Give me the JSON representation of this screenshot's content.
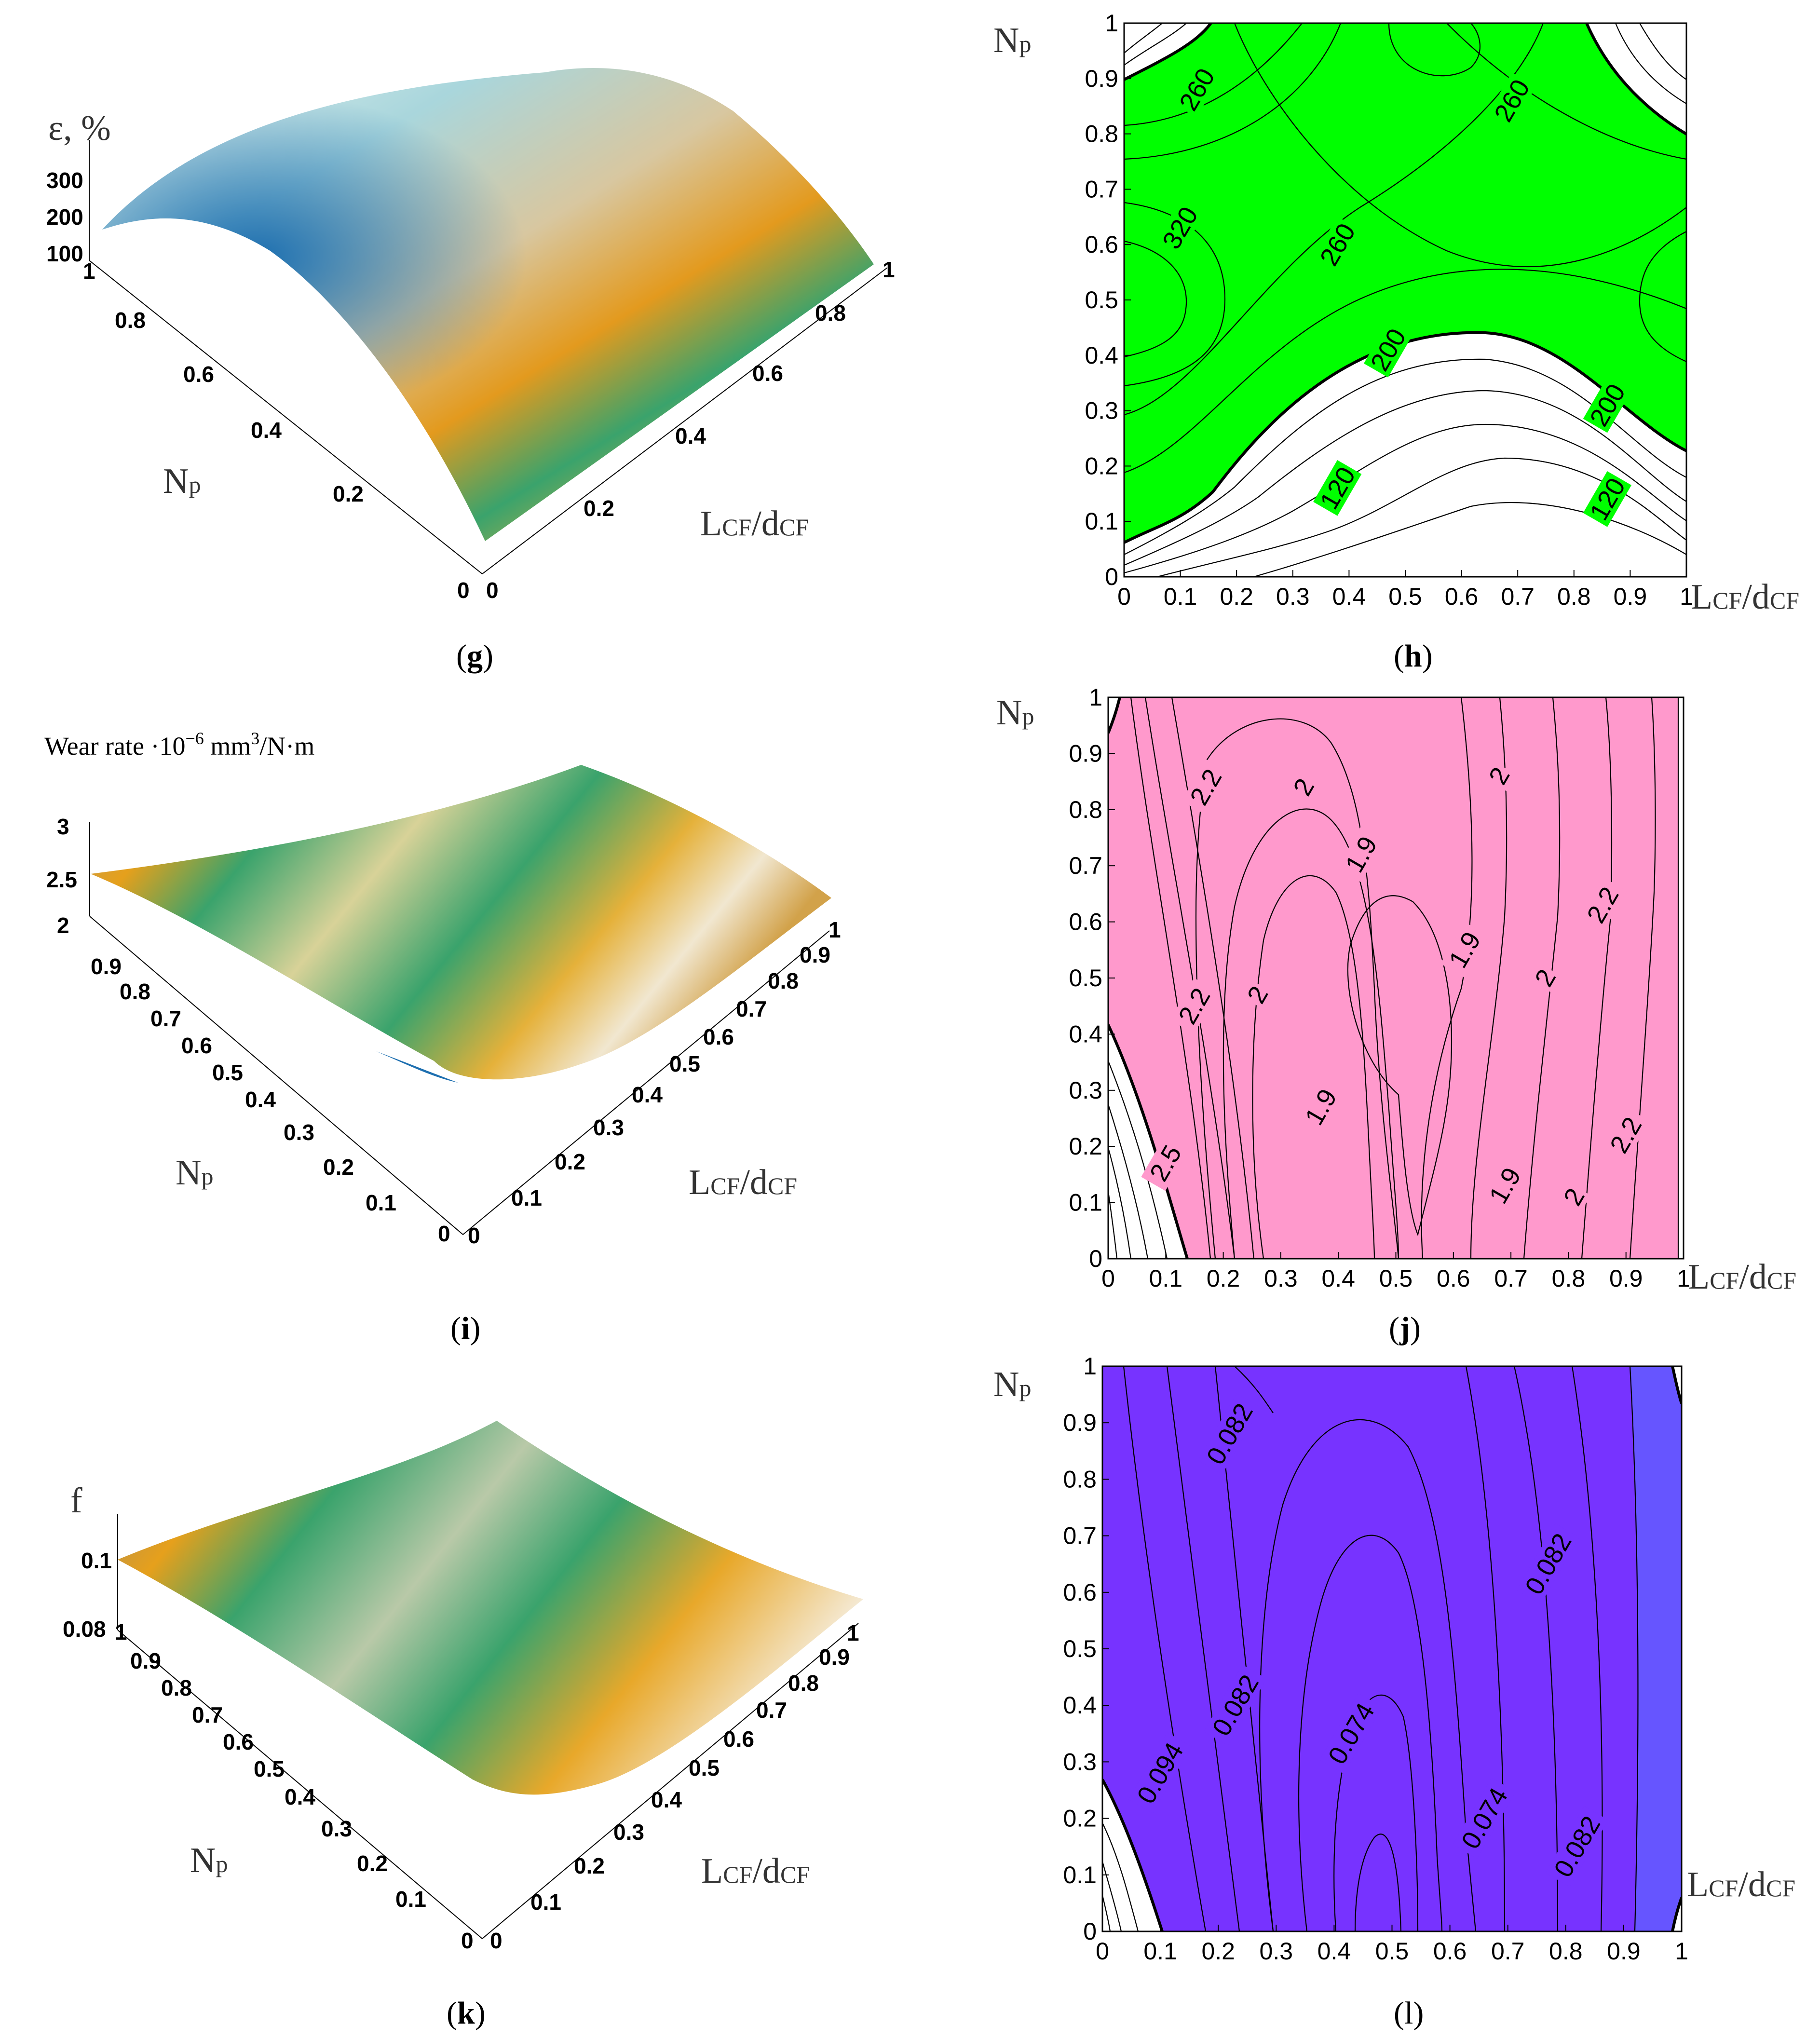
{
  "colors": {
    "green_fill": "#00ff00",
    "pink_fill": "#ff99cc",
    "violet_fill": "#7733ff",
    "violet_edge": "#6655ff",
    "surface_cream": "#f1e7d0",
    "surface_teal": "#9ed6df",
    "surface_orange": "#e39a1e",
    "surface_green": "#3aa36c",
    "surface_brown": "#5a4a2a",
    "surface_blue": "#1d6fb0"
  },
  "x_axis_label": {
    "main": "L",
    "sub1": "CF",
    "mid": "/d",
    "sub2": "CF"
  },
  "y_axis_label": {
    "main": "N",
    "sub": "p"
  },
  "panels": {
    "g": {
      "caption": "g",
      "zlabel": "ε, %",
      "z_ticks": [
        "300",
        "200",
        "100"
      ],
      "np_ticks": [
        "1",
        "0.8",
        "0.6",
        "0.4",
        "0.2",
        "0"
      ],
      "l_ticks": [
        "0",
        "0.2",
        "0.4",
        "0.6",
        "0.8",
        "1"
      ]
    },
    "i": {
      "caption": "i",
      "zlabel": {
        "prefix": "Wear rate ·10",
        "exp": "−6",
        "mid": " mm",
        "exp2": "3",
        "suffix": "/N·m"
      },
      "z_ticks": [
        "3",
        "2.5",
        "2"
      ],
      "np_ticks": [
        "0.9",
        "0.8",
        "0.7",
        "0.6",
        "0.5",
        "0.4",
        "0.3",
        "0.2",
        "0.1",
        "0"
      ],
      "l_ticks": [
        "0",
        "0.1",
        "0.2",
        "0.3",
        "0.4",
        "0.5",
        "0.6",
        "0.7",
        "0.8",
        "0.9",
        "1"
      ]
    },
    "k": {
      "caption": "k",
      "zlabel": "f",
      "z_ticks": [
        "0.1",
        "0.08"
      ],
      "np_ticks": [
        "1",
        "0.9",
        "0.8",
        "0.7",
        "0.6",
        "0.5",
        "0.4",
        "0.3",
        "0.2",
        "0.1",
        "0"
      ],
      "l_ticks": [
        "0",
        "0.1",
        "0.2",
        "0.3",
        "0.4",
        "0.5",
        "0.6",
        "0.7",
        "0.8",
        "0.9",
        "1"
      ]
    },
    "h": {
      "caption": "h"
    },
    "j": {
      "caption": "j"
    },
    "l": {
      "caption": "l"
    }
  },
  "chart_data": [
    {
      "id": "h",
      "type": "contour",
      "title": "",
      "xlabel": "LCF/dCF",
      "ylabel": "Np",
      "xlim": [
        0,
        1
      ],
      "ylim": [
        0,
        1
      ],
      "x_ticks": [
        "0",
        "0.1",
        "0.2",
        "0.3",
        "0.4",
        "0.5",
        "0.6",
        "0.7",
        "0.8",
        "0.9",
        "1"
      ],
      "y_ticks": [
        "0",
        "0.1",
        "0.2",
        "0.3",
        "0.4",
        "0.5",
        "0.6",
        "0.7",
        "0.8",
        "0.9",
        "1"
      ],
      "fill_region": "values >= 200",
      "contour_labels": [
        {
          "text": "260",
          "x": 0.13,
          "y": 0.88
        },
        {
          "text": "260",
          "x": 0.69,
          "y": 0.86
        },
        {
          "text": "320",
          "x": 0.1,
          "y": 0.63
        },
        {
          "text": "260",
          "x": 0.38,
          "y": 0.6
        },
        {
          "text": "200",
          "x": 0.47,
          "y": 0.41
        },
        {
          "text": "200",
          "x": 0.86,
          "y": 0.31
        },
        {
          "text": "120",
          "x": 0.38,
          "y": 0.16
        },
        {
          "text": "120",
          "x": 0.86,
          "y": 0.14
        }
      ]
    },
    {
      "id": "j",
      "type": "contour",
      "title": "",
      "xlabel": "LCF/dCF",
      "ylabel": "Np",
      "xlim": [
        0,
        1
      ],
      "ylim": [
        0,
        1
      ],
      "x_ticks": [
        "0",
        "0.1",
        "0.2",
        "0.3",
        "0.4",
        "0.5",
        "0.6",
        "0.7",
        "0.8",
        "0.9",
        "1"
      ],
      "y_ticks": [
        "0",
        "0.1",
        "0.2",
        "0.3",
        "0.4",
        "0.5",
        "0.6",
        "0.7",
        "0.8",
        "0.9",
        "1"
      ],
      "fill_region": "values <= 2.4",
      "contour_labels": [
        {
          "text": "2.2",
          "x": 0.17,
          "y": 0.84
        },
        {
          "text": "2",
          "x": 0.34,
          "y": 0.84
        },
        {
          "text": "2",
          "x": 0.68,
          "y": 0.86
        },
        {
          "text": "1.9",
          "x": 0.44,
          "y": 0.72
        },
        {
          "text": "1.9",
          "x": 0.62,
          "y": 0.55
        },
        {
          "text": "2.2",
          "x": 0.86,
          "y": 0.63
        },
        {
          "text": "2.2",
          "x": 0.15,
          "y": 0.45
        },
        {
          "text": "2",
          "x": 0.26,
          "y": 0.47
        },
        {
          "text": "2",
          "x": 0.76,
          "y": 0.5
        },
        {
          "text": "1.9",
          "x": 0.37,
          "y": 0.27
        },
        {
          "text": "2.2",
          "x": 0.9,
          "y": 0.22
        },
        {
          "text": "1.9",
          "x": 0.69,
          "y": 0.13
        },
        {
          "text": "2",
          "x": 0.81,
          "y": 0.11
        },
        {
          "text": "2.5",
          "x": 0.1,
          "y": 0.17
        }
      ]
    },
    {
      "id": "l",
      "type": "contour",
      "title": "",
      "xlabel": "LCF/dCF",
      "ylabel": "Np",
      "xlim": [
        0,
        1
      ],
      "ylim": [
        0,
        1
      ],
      "x_ticks": [
        "0",
        "0.1",
        "0.2",
        "0.3",
        "0.4",
        "0.5",
        "0.6",
        "0.7",
        "0.8",
        "0.9",
        "1"
      ],
      "y_ticks": [
        "0",
        "0.1",
        "0.2",
        "0.3",
        "0.4",
        "0.5",
        "0.6",
        "0.7",
        "0.8",
        "0.9",
        "1"
      ],
      "fill_region": "values <= 0.1",
      "contour_labels": [
        {
          "text": "0.082",
          "x": 0.22,
          "y": 0.88
        },
        {
          "text": "0.082",
          "x": 0.77,
          "y": 0.65
        },
        {
          "text": "0.082",
          "x": 0.23,
          "y": 0.4
        },
        {
          "text": "0.074",
          "x": 0.43,
          "y": 0.35
        },
        {
          "text": "0.094",
          "x": 0.1,
          "y": 0.28
        },
        {
          "text": "0.074",
          "x": 0.66,
          "y": 0.2
        },
        {
          "text": "0.082",
          "x": 0.82,
          "y": 0.15
        }
      ]
    },
    {
      "id": "g",
      "type": "surface",
      "zlabel": "ε, %",
      "xlabel": "LCF/dCF",
      "ylabel": "Np",
      "zlim": [
        100,
        300
      ]
    },
    {
      "id": "i",
      "type": "surface",
      "zlabel": "Wear rate ·10−6 mm3/N·m",
      "xlabel": "LCF/dCF",
      "ylabel": "Np",
      "zlim": [
        2,
        3
      ]
    },
    {
      "id": "k",
      "type": "surface",
      "zlabel": "f",
      "xlabel": "LCF/dCF",
      "ylabel": "Np",
      "zlim": [
        0.08,
        0.1
      ]
    }
  ]
}
